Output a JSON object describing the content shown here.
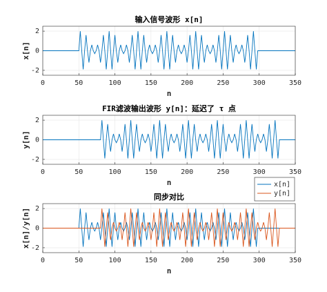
{
  "chart_data": [
    {
      "type": "line",
      "title": "输入信号波形 x[n]",
      "xlabel": "n",
      "ylabel": "x[n]",
      "xlim": [
        0,
        350
      ],
      "ylim": [
        -2.5,
        2.5
      ],
      "xticks": [
        0,
        50,
        100,
        150,
        200,
        250,
        300,
        350
      ],
      "yticks": [
        -2,
        0,
        2
      ],
      "grid": true,
      "series": [
        {
          "color": "#0072bd",
          "x": [
            0,
            50,
            52,
            54,
            56,
            58,
            60,
            62,
            64,
            66,
            68,
            70,
            72,
            74,
            76,
            78,
            80,
            82,
            84,
            86,
            88,
            90,
            92,
            94,
            96,
            98,
            100,
            102,
            104,
            106,
            108,
            110,
            112,
            114,
            116,
            118,
            120,
            122,
            124,
            126,
            128,
            130,
            132,
            134,
            136,
            138,
            140,
            142,
            144,
            146,
            148,
            150,
            152,
            154,
            156,
            158,
            160,
            162,
            164,
            166,
            168,
            170,
            172,
            174,
            176,
            178,
            180,
            182,
            184,
            186,
            188,
            190,
            192,
            194,
            196,
            198,
            200,
            202,
            204,
            206,
            208,
            210,
            212,
            214,
            216,
            218,
            220,
            222,
            224,
            226,
            228,
            230,
            232,
            234,
            236,
            238,
            240,
            242,
            244,
            246,
            248,
            250,
            252,
            254,
            256,
            258,
            260,
            262,
            264,
            266,
            268,
            270,
            272,
            274,
            276,
            278,
            280,
            282,
            284,
            286,
            288,
            290,
            292,
            294,
            296,
            298,
            350
          ],
          "values": [
            0,
            0,
            2,
            0,
            -1.9,
            0,
            1.6,
            0,
            -1.2,
            0,
            0.6,
            0,
            -0.3,
            0,
            0.6,
            0,
            -1.2,
            0,
            1.6,
            0,
            -1.9,
            0,
            2,
            0,
            -1.9,
            0,
            1.6,
            0,
            -1.2,
            0,
            0.6,
            0,
            -0.3,
            0,
            0.6,
            0,
            -1.2,
            0,
            1.6,
            0,
            -1.9,
            0,
            2,
            0,
            -1.9,
            0,
            1.6,
            0,
            -1.2,
            0,
            0.6,
            0,
            -0.3,
            0,
            0.6,
            0,
            -1.2,
            0,
            1.6,
            0,
            -1.9,
            0,
            2,
            0,
            -1.9,
            0,
            1.6,
            0,
            -1.2,
            0,
            0.6,
            0,
            -0.3,
            0,
            0.6,
            0,
            -1.2,
            0,
            1.6,
            0,
            -1.9,
            0,
            2,
            0,
            -1.9,
            0,
            1.6,
            0,
            -1.2,
            0,
            0.6,
            0,
            -0.3,
            0,
            0.6,
            0,
            -1.2,
            0,
            1.6,
            0,
            -1.9,
            0,
            2,
            0,
            -1.9,
            0,
            1.6,
            0,
            -1.2,
            0,
            0.6,
            0,
            -0.3,
            0,
            0.6,
            0,
            -1.2,
            0,
            1.6,
            0,
            -1.9,
            0,
            2,
            0,
            -1.9,
            0,
            0
          ]
        }
      ]
    },
    {
      "type": "line",
      "title": "FIR滤波输出波形 y[n]：延迟了 τ 点",
      "xlabel": "n",
      "ylabel": "y[n]",
      "xlim": [
        0,
        350
      ],
      "ylim": [
        -2.5,
        2.5
      ],
      "xticks": [
        0,
        50,
        100,
        150,
        200,
        250,
        300,
        350
      ],
      "yticks": [
        -2,
        0,
        2
      ],
      "grid": true,
      "series": [
        {
          "color": "#0072bd",
          "x": [
            0,
            80,
            82,
            84,
            86,
            88,
            90,
            92,
            94,
            96,
            98,
            100,
            102,
            104,
            106,
            108,
            110,
            112,
            114,
            116,
            118,
            120,
            122,
            124,
            126,
            128,
            130,
            132,
            134,
            136,
            138,
            140,
            142,
            144,
            146,
            148,
            150,
            152,
            154,
            156,
            158,
            160,
            162,
            164,
            166,
            168,
            170,
            172,
            174,
            176,
            178,
            180,
            182,
            184,
            186,
            188,
            190,
            192,
            194,
            196,
            198,
            200,
            202,
            204,
            206,
            208,
            210,
            212,
            214,
            216,
            218,
            220,
            222,
            224,
            226,
            228,
            230,
            232,
            234,
            236,
            238,
            240,
            242,
            244,
            246,
            248,
            250,
            252,
            254,
            256,
            258,
            260,
            262,
            264,
            266,
            268,
            270,
            272,
            274,
            276,
            278,
            280,
            282,
            284,
            286,
            288,
            290,
            292,
            294,
            296,
            298,
            300,
            302,
            304,
            306,
            308,
            310,
            312,
            314,
            316,
            318,
            320,
            322,
            324,
            326,
            328,
            350
          ],
          "values": [
            0,
            0,
            2,
            0,
            -1.9,
            0,
            1.6,
            0,
            -1.2,
            0,
            0.6,
            0,
            -0.3,
            0,
            0.6,
            0,
            -1.2,
            0,
            1.6,
            0,
            -1.9,
            0,
            2,
            0,
            -1.9,
            0,
            1.6,
            0,
            -1.2,
            0,
            0.6,
            0,
            -0.3,
            0,
            0.6,
            0,
            -1.2,
            0,
            1.6,
            0,
            -1.9,
            0,
            2,
            0,
            -1.9,
            0,
            1.6,
            0,
            -1.2,
            0,
            0.6,
            0,
            -0.3,
            0,
            0.6,
            0,
            -1.2,
            0,
            1.6,
            0,
            -1.9,
            0,
            2,
            0,
            -1.9,
            0,
            1.6,
            0,
            -1.2,
            0,
            0.6,
            0,
            -0.3,
            0,
            0.6,
            0,
            -1.2,
            0,
            1.6,
            0,
            -1.9,
            0,
            2,
            0,
            -1.9,
            0,
            1.6,
            0,
            -1.2,
            0,
            0.6,
            0,
            -0.3,
            0,
            0.6,
            0,
            -1.2,
            0,
            1.6,
            0,
            -1.9,
            0,
            2,
            0,
            -1.9,
            0,
            1.6,
            0,
            -1.2,
            0,
            0.6,
            0,
            -0.3,
            0,
            0.6,
            0,
            -1.2,
            0,
            1.6,
            0,
            -1.9,
            0,
            2,
            0,
            -1.9,
            0,
            0
          ]
        }
      ]
    },
    {
      "type": "line",
      "title": "同步对比",
      "xlabel": "n",
      "ylabel": "x[n]/y[n]",
      "xlim": [
        0,
        350
      ],
      "ylim": [
        -2.5,
        2.5
      ],
      "xticks": [
        0,
        50,
        100,
        150,
        200,
        250,
        300,
        350
      ],
      "yticks": [
        -2,
        0,
        2
      ],
      "grid": true,
      "legend": "northeast",
      "series": [
        {
          "name": "x[n]",
          "color": "#0072bd",
          "x": [
            0,
            50,
            52,
            54,
            56,
            58,
            60,
            62,
            64,
            66,
            68,
            70,
            72,
            74,
            76,
            78,
            80,
            82,
            84,
            86,
            88,
            90,
            92,
            94,
            96,
            98,
            100,
            102,
            104,
            106,
            108,
            110,
            112,
            114,
            116,
            118,
            120,
            122,
            124,
            126,
            128,
            130,
            132,
            134,
            136,
            138,
            140,
            142,
            144,
            146,
            148,
            150,
            152,
            154,
            156,
            158,
            160,
            162,
            164,
            166,
            168,
            170,
            172,
            174,
            176,
            178,
            180,
            182,
            184,
            186,
            188,
            190,
            192,
            194,
            196,
            198,
            200,
            202,
            204,
            206,
            208,
            210,
            212,
            214,
            216,
            218,
            220,
            222,
            224,
            226,
            228,
            230,
            232,
            234,
            236,
            238,
            240,
            242,
            244,
            246,
            248,
            250,
            252,
            254,
            256,
            258,
            260,
            262,
            264,
            266,
            268,
            270,
            272,
            274,
            276,
            278,
            280,
            282,
            284,
            286,
            288,
            290,
            292,
            294,
            296,
            298,
            350
          ],
          "values": [
            0,
            0,
            2,
            0,
            -1.9,
            0,
            1.6,
            0,
            -1.2,
            0,
            0.6,
            0,
            -0.3,
            0,
            0.6,
            0,
            -1.2,
            0,
            1.6,
            0,
            -1.9,
            0,
            2,
            0,
            -1.9,
            0,
            1.6,
            0,
            -1.2,
            0,
            0.6,
            0,
            -0.3,
            0,
            0.6,
            0,
            -1.2,
            0,
            1.6,
            0,
            -1.9,
            0,
            2,
            0,
            -1.9,
            0,
            1.6,
            0,
            -1.2,
            0,
            0.6,
            0,
            -0.3,
            0,
            0.6,
            0,
            -1.2,
            0,
            1.6,
            0,
            -1.9,
            0,
            2,
            0,
            -1.9,
            0,
            1.6,
            0,
            -1.2,
            0,
            0.6,
            0,
            -0.3,
            0,
            0.6,
            0,
            -1.2,
            0,
            1.6,
            0,
            -1.9,
            0,
            2,
            0,
            -1.9,
            0,
            1.6,
            0,
            -1.2,
            0,
            0.6,
            0,
            -0.3,
            0,
            0.6,
            0,
            -1.2,
            0,
            1.6,
            0,
            -1.9,
            0,
            2,
            0,
            -1.9,
            0,
            1.6,
            0,
            -1.2,
            0,
            0.6,
            0,
            -0.3,
            0,
            0.6,
            0,
            -1.2,
            0,
            1.6,
            0,
            -1.9,
            0,
            2,
            0,
            -1.9,
            0,
            0
          ]
        },
        {
          "name": "y[n]",
          "color": "#d95319",
          "x": [
            0,
            80,
            82,
            84,
            86,
            88,
            90,
            92,
            94,
            96,
            98,
            100,
            102,
            104,
            106,
            108,
            110,
            112,
            114,
            116,
            118,
            120,
            122,
            124,
            126,
            128,
            130,
            132,
            134,
            136,
            138,
            140,
            142,
            144,
            146,
            148,
            150,
            152,
            154,
            156,
            158,
            160,
            162,
            164,
            166,
            168,
            170,
            172,
            174,
            176,
            178,
            180,
            182,
            184,
            186,
            188,
            190,
            192,
            194,
            196,
            198,
            200,
            202,
            204,
            206,
            208,
            210,
            212,
            214,
            216,
            218,
            220,
            222,
            224,
            226,
            228,
            230,
            232,
            234,
            236,
            238,
            240,
            242,
            244,
            246,
            248,
            250,
            252,
            254,
            256,
            258,
            260,
            262,
            264,
            266,
            268,
            270,
            272,
            274,
            276,
            278,
            280,
            282,
            284,
            286,
            288,
            290,
            292,
            294,
            296,
            298,
            300,
            302,
            304,
            306,
            308,
            310,
            312,
            314,
            316,
            318,
            320,
            322,
            324,
            326,
            328,
            350
          ],
          "values": [
            0,
            0,
            2,
            0,
            -1.9,
            0,
            1.6,
            0,
            -1.2,
            0,
            0.6,
            0,
            -0.3,
            0,
            0.6,
            0,
            -1.2,
            0,
            1.6,
            0,
            -1.9,
            0,
            2,
            0,
            -1.9,
            0,
            1.6,
            0,
            -1.2,
            0,
            0.6,
            0,
            -0.3,
            0,
            0.6,
            0,
            -1.2,
            0,
            1.6,
            0,
            -1.9,
            0,
            2,
            0,
            -1.9,
            0,
            1.6,
            0,
            -1.2,
            0,
            0.6,
            0,
            -0.3,
            0,
            0.6,
            0,
            -1.2,
            0,
            1.6,
            0,
            -1.9,
            0,
            2,
            0,
            -1.9,
            0,
            1.6,
            0,
            -1.2,
            0,
            0.6,
            0,
            -0.3,
            0,
            0.6,
            0,
            -1.2,
            0,
            1.6,
            0,
            -1.9,
            0,
            2,
            0,
            -1.9,
            0,
            1.6,
            0,
            -1.2,
            0,
            0.6,
            0,
            -0.3,
            0,
            0.6,
            0,
            -1.2,
            0,
            1.6,
            0,
            -1.9,
            0,
            2,
            0,
            -1.9,
            0,
            1.6,
            0,
            -1.2,
            0,
            0.6,
            0,
            -0.3,
            0,
            0.6,
            0,
            -1.2,
            0,
            1.6,
            0,
            -1.9,
            0,
            2,
            0,
            -1.9,
            0,
            0
          ]
        }
      ]
    }
  ]
}
